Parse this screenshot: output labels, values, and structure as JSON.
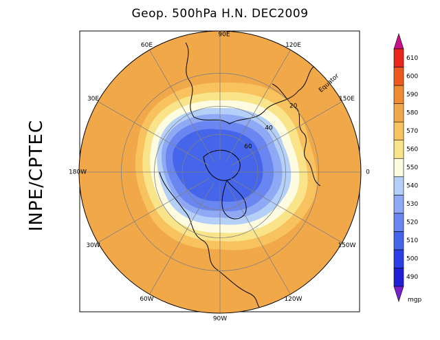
{
  "title": "Geop. 500hPa H.N. DEC2009",
  "side_label": "INPE/CPTEC",
  "map": {
    "projection": "polar-stereographic-north",
    "variable": "geopotential height 500hPa",
    "longitude_labels": [
      {
        "text": "90E",
        "lon": 90
      },
      {
        "text": "60E",
        "lon": 60
      },
      {
        "text": "30E",
        "lon": 30
      },
      {
        "text": "0",
        "lon": 0
      },
      {
        "text": "30W",
        "lon": -30
      },
      {
        "text": "60W",
        "lon": -60
      },
      {
        "text": "90W",
        "lon": -90
      },
      {
        "text": "120W",
        "lon": -120
      },
      {
        "text": "150W",
        "lon": -150
      },
      {
        "text": "180W",
        "lon": 180
      },
      {
        "text": "150E",
        "lon": 150
      },
      {
        "text": "120E",
        "lon": 120
      }
    ],
    "latitude_labels": [
      {
        "text": "Equator",
        "lat": 0
      },
      {
        "text": "20",
        "lat": 20
      },
      {
        "text": "40",
        "lat": 40
      },
      {
        "text": "60",
        "lat": 60
      }
    ]
  },
  "colorbar": {
    "unit": "mgp",
    "levels": [
      490,
      500,
      510,
      520,
      530,
      540,
      550,
      560,
      570,
      580,
      590,
      600,
      610
    ],
    "colors": [
      "#1f1fd4",
      "#2c3fe6",
      "#4565ea",
      "#6a86f0",
      "#8fa9f4",
      "#b4d0f8",
      "#fdfce0",
      "#f9e48a",
      "#f8c35e",
      "#f1a849",
      "#ef8b30",
      "#ec5a1f",
      "#e8261a"
    ],
    "under_color": "#7a1fd0",
    "over_color": "#c8128a"
  },
  "colors": {
    "ocean_warm": "#f1a849",
    "pole_low": "#4565ea",
    "coastline": "#000000",
    "grid": "#808080"
  }
}
